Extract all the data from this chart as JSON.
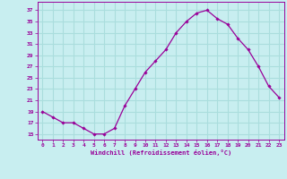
{
  "x": [
    0,
    1,
    2,
    3,
    4,
    5,
    6,
    7,
    8,
    9,
    10,
    11,
    12,
    13,
    14,
    15,
    16,
    17,
    18,
    19,
    20,
    21,
    22,
    23
  ],
  "y": [
    19,
    18,
    17,
    17,
    16,
    15,
    15,
    16,
    20,
    23,
    26,
    28,
    30,
    33,
    35,
    36.5,
    37,
    35.5,
    34.5,
    32,
    30,
    27,
    23.5,
    21.5
  ],
  "line_color": "#990099",
  "marker": "D",
  "marker_size": 1.8,
  "bg_color": "#c8eef0",
  "grid_color": "#aadddd",
  "xlabel": "Windchill (Refroidissement éolien,°C)",
  "xlabel_color": "#990099",
  "tick_color": "#990099",
  "yticks": [
    15,
    17,
    19,
    21,
    23,
    25,
    27,
    29,
    31,
    33,
    35,
    37
  ],
  "ylim": [
    14,
    38.5
  ],
  "xlim": [
    -0.5,
    23.5
  ],
  "title": ""
}
